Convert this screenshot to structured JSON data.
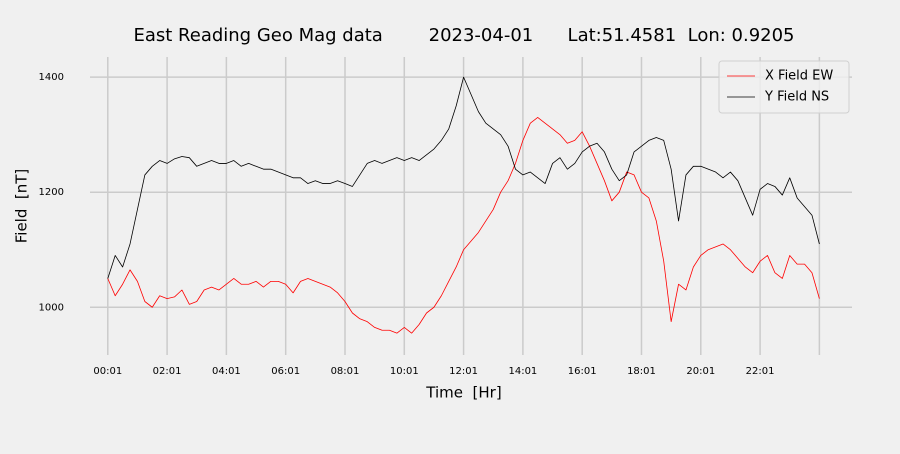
{
  "chart_data": {
    "type": "line",
    "title": "East Reading Geo Mag data        2023-04-01      Lat:51.4581  Lon: 0.9205",
    "x_label": "Time  [Hr]",
    "y_label": "Field  [nT]",
    "x": [
      0,
      0.25,
      0.5,
      0.75,
      1,
      1.25,
      1.5,
      1.75,
      2,
      2.25,
      2.5,
      2.75,
      3,
      3.25,
      3.5,
      3.75,
      4,
      4.25,
      4.5,
      4.75,
      5,
      5.25,
      5.5,
      5.75,
      6,
      6.25,
      6.5,
      6.75,
      7,
      7.25,
      7.5,
      7.75,
      8,
      8.25,
      8.5,
      8.75,
      9,
      9.25,
      9.5,
      9.75,
      10,
      10.25,
      10.5,
      10.75,
      11,
      11.25,
      11.5,
      11.75,
      12,
      12.25,
      12.5,
      12.75,
      13,
      13.25,
      13.5,
      13.75,
      14,
      14.25,
      14.5,
      14.75,
      15,
      15.25,
      15.5,
      15.75,
      16,
      16.25,
      16.5,
      16.75,
      17,
      17.25,
      17.5,
      17.75,
      18,
      18.25,
      18.5,
      18.75,
      19,
      19.25,
      19.5,
      19.75,
      20,
      20.25,
      20.5,
      20.75,
      21,
      21.25,
      21.5,
      21.75,
      22,
      22.25,
      22.5,
      22.75,
      23,
      23.25,
      23.5,
      23.75,
      24
    ],
    "series": [
      {
        "name": "X Field EW",
        "color": "#ff0000",
        "values": [
          1050,
          1020,
          1040,
          1065,
          1045,
          1010,
          1000,
          1020,
          1015,
          1018,
          1030,
          1005,
          1010,
          1030,
          1035,
          1030,
          1040,
          1050,
          1040,
          1040,
          1045,
          1035,
          1045,
          1045,
          1040,
          1025,
          1045,
          1050,
          1045,
          1040,
          1035,
          1025,
          1010,
          990,
          980,
          975,
          965,
          960,
          960,
          955,
          965,
          955,
          970,
          990,
          1000,
          1020,
          1045,
          1070,
          1100,
          1115,
          1130,
          1150,
          1170,
          1200,
          1220,
          1250,
          1290,
          1320,
          1330,
          1320,
          1310,
          1300,
          1285,
          1290,
          1305,
          1280,
          1250,
          1220,
          1185,
          1200,
          1235,
          1230,
          1200,
          1190,
          1150,
          1080,
          975,
          1040,
          1030,
          1070,
          1090,
          1100,
          1105,
          1110,
          1100,
          1085,
          1070,
          1060,
          1080,
          1090,
          1060,
          1050,
          1090,
          1075,
          1075,
          1060,
          1015
        ]
      },
      {
        "name": "Y Field NS",
        "color": "#000000",
        "values": [
          1050,
          1090,
          1070,
          1110,
          1170,
          1230,
          1245,
          1255,
          1250,
          1258,
          1262,
          1260,
          1245,
          1250,
          1255,
          1250,
          1250,
          1255,
          1245,
          1250,
          1245,
          1240,
          1240,
          1235,
          1230,
          1225,
          1225,
          1215,
          1220,
          1215,
          1215,
          1220,
          1215,
          1210,
          1230,
          1250,
          1255,
          1250,
          1255,
          1260,
          1255,
          1260,
          1255,
          1265,
          1275,
          1290,
          1310,
          1350,
          1400,
          1370,
          1340,
          1320,
          1310,
          1300,
          1280,
          1240,
          1230,
          1235,
          1225,
          1215,
          1250,
          1260,
          1240,
          1250,
          1270,
          1280,
          1285,
          1270,
          1240,
          1220,
          1230,
          1270,
          1280,
          1290,
          1295,
          1290,
          1240,
          1150,
          1230,
          1245,
          1245,
          1240,
          1235,
          1225,
          1235,
          1220,
          1190,
          1160,
          1205,
          1215,
          1210,
          1195,
          1225,
          1190,
          1175,
          1160,
          1110
        ]
      }
    ],
    "xlim": [
      -0.6,
      25.1
    ],
    "ylim": [
      917,
      1435
    ],
    "xticks": [
      {
        "value": 0,
        "label": "00:01"
      },
      {
        "value": 2,
        "label": "02:01"
      },
      {
        "value": 4,
        "label": "04:01"
      },
      {
        "value": 6,
        "label": "06:01"
      },
      {
        "value": 8,
        "label": "08:01"
      },
      {
        "value": 10,
        "label": "10:01"
      },
      {
        "value": 12,
        "label": "12:01"
      },
      {
        "value": 14,
        "label": "14:01"
      },
      {
        "value": 16,
        "label": "16:01"
      },
      {
        "value": 18,
        "label": "18:01"
      },
      {
        "value": 20,
        "label": "20:01"
      },
      {
        "value": 22,
        "label": "22:01"
      },
      {
        "value": 24,
        "label": null
      }
    ],
    "yticks": [
      1000,
      1200,
      1400
    ],
    "grid": true,
    "legend": "upper right"
  }
}
